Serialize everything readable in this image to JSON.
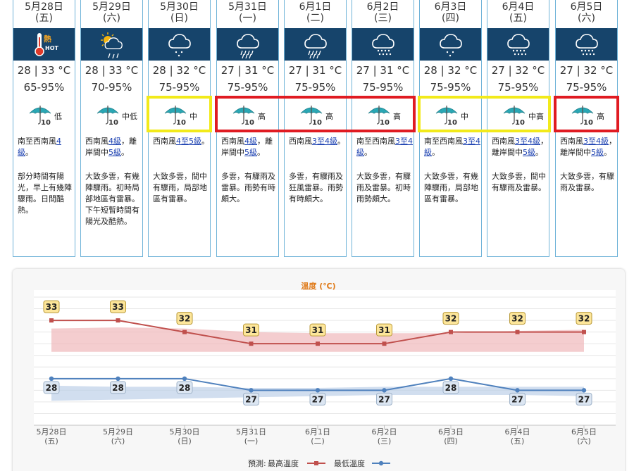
{
  "days": [
    {
      "date": "5月28日",
      "weekday": "(五)",
      "weather": "hot",
      "temp": "28 | 33 °C",
      "humidity": "65-95%",
      "psr": "低",
      "wind_pre": "南至西南風",
      "wind_link": "4級",
      "wind_link2": "",
      "wind_mid": "",
      "wind_post": "。",
      "desc": "部分時間有陽光，早上有幾陣驟雨。日間酷熱。"
    },
    {
      "date": "5月29日",
      "weekday": "(六)",
      "weather": "sun-rain",
      "temp": "28 | 33 °C",
      "humidity": "70-95%",
      "psr": "中低",
      "wind_pre": "西南風",
      "wind_link": "4級",
      "wind_mid": "，離岸間中",
      "wind_link2": "5級",
      "wind_post": "。",
      "desc": "大致多雲，有幾陣驟雨。初時局部地區有雷暴。下午短暫時間有陽光及酷熱。"
    },
    {
      "date": "5月30日",
      "weekday": "(日)",
      "weather": "shower",
      "temp": "28 | 32 °C",
      "humidity": "75-95%",
      "psr": "中",
      "wind_pre": "西南風",
      "wind_link": "4至5級",
      "wind_mid": "",
      "wind_link2": "",
      "wind_post": "。",
      "desc": "大致多雲，間中有驟雨，局部地區有雷暴。"
    },
    {
      "date": "5月31日",
      "weekday": "(一)",
      "weather": "heavy-rain",
      "temp": "27 | 31 °C",
      "humidity": "75-95%",
      "psr": "高",
      "wind_pre": "西南風",
      "wind_link": "4級",
      "wind_mid": "，離岸間中",
      "wind_link2": "5級",
      "wind_post": "。",
      "desc": "多雲，有驟雨及雷暴。雨勢有時頗大。"
    },
    {
      "date": "6月1日",
      "weekday": "(二)",
      "weather": "heavy-rain",
      "temp": "27 | 31 °C",
      "humidity": "75-95%",
      "psr": "高",
      "wind_pre": "西南風",
      "wind_link": "3至4級",
      "wind_mid": "",
      "wind_link2": "",
      "wind_post": "。",
      "desc": "多雲，有驟雨及狂風雷暴。雨勢有時頗大。"
    },
    {
      "date": "6月2日",
      "weekday": "(三)",
      "weather": "rain",
      "temp": "27 | 31 °C",
      "humidity": "75-95%",
      "psr": "高",
      "wind_pre": "南至西南風",
      "wind_link": "3至4級",
      "wind_mid": "",
      "wind_link2": "",
      "wind_post": "。",
      "desc": "大致多雲，有驟雨及雷暴。初時雨勢頗大。"
    },
    {
      "date": "6月3日",
      "weekday": "(四)",
      "weather": "shower",
      "temp": "28 | 32 °C",
      "humidity": "75-95%",
      "psr": "中",
      "wind_pre": "南至西南風",
      "wind_link": "3至4級",
      "wind_mid": "",
      "wind_link2": "",
      "wind_post": "。",
      "desc": "大致多雲，有幾陣驟雨，局部地區有雷暴。"
    },
    {
      "date": "6月4日",
      "weekday": "(五)",
      "weather": "rain",
      "temp": "27 | 32 °C",
      "humidity": "75-95%",
      "psr": "中高",
      "wind_pre": "西南風",
      "wind_link": "3至4級",
      "wind_mid": "，離岸間中",
      "wind_link2": "5級",
      "wind_post": "。",
      "desc": "大致多雲，間中有驟雨及雷暴。"
    },
    {
      "date": "6月5日",
      "weekday": "(六)",
      "weather": "rain",
      "temp": "27 | 32 °C",
      "humidity": "75-95%",
      "psr": "高",
      "wind_pre": "西南風",
      "wind_link": "3至4級",
      "wind_mid": "，離岸間中",
      "wind_link2": "5級",
      "wind_post": "。",
      "desc": "大致多雲，有驟雨及雷暴。"
    }
  ],
  "icon_labels": {
    "hot_cn": "熱",
    "hot_en": "HOT",
    "psr_num": "10"
  },
  "colors": {
    "header_bar": "#16446b",
    "border": "#6fb3d8",
    "yellow": "#f2ea1a",
    "red": "#e01b22",
    "max_line": "#c0504d",
    "min_line": "#4f81bd",
    "max_band": "#efb8bb",
    "min_band": "#bdd0e8",
    "label_fill": "#fde69a",
    "label_fill_min": "#dce6f2"
  },
  "highlights": [
    {
      "color": "yellow",
      "from": 2,
      "to": 2
    },
    {
      "color": "red",
      "from": 3,
      "to": 5
    },
    {
      "color": "yellow",
      "from": 6,
      "to": 7
    },
    {
      "color": "red",
      "from": 8,
      "to": 8
    }
  ],
  "chart_data": {
    "type": "line",
    "title": "溫度 (℃)",
    "categories": [
      "5月28日",
      "5月29日",
      "5月30日",
      "5月31日",
      "6月1日",
      "6月2日",
      "6月3日",
      "6月4日",
      "6月5日"
    ],
    "weekdays": [
      "(五)",
      "(六)",
      "(日)",
      "(一)",
      "(二)",
      "(三)",
      "(四)",
      "(五)",
      "(六)"
    ],
    "series": [
      {
        "name": "最高溫度",
        "values": [
          33,
          33,
          32,
          31,
          31,
          31,
          32,
          32,
          32
        ],
        "band_high": [
          32.3,
          32.4,
          32.3,
          32.0,
          31.9,
          31.9,
          31.9,
          32.1,
          32.2
        ],
        "band_low": [
          30.3,
          30.3,
          30.3,
          30.3,
          30.3,
          30.3,
          30.3,
          30.3,
          30.3
        ]
      },
      {
        "name": "最低溫度",
        "values": [
          28,
          28,
          28,
          27,
          27,
          27,
          28,
          27,
          27
        ],
        "band_high": [
          27.4,
          27.3,
          27.3,
          27.2,
          27.2,
          27.3,
          27.3,
          27.3,
          27.3
        ],
        "band_low": [
          26.1,
          26.2,
          26.3,
          26.4,
          26.5,
          26.6,
          26.6,
          26.6,
          26.5
        ]
      }
    ],
    "ylim": [
      24,
      35
    ],
    "grid": true,
    "legend_prefix": "預測:",
    "legend": "bottom-center"
  }
}
